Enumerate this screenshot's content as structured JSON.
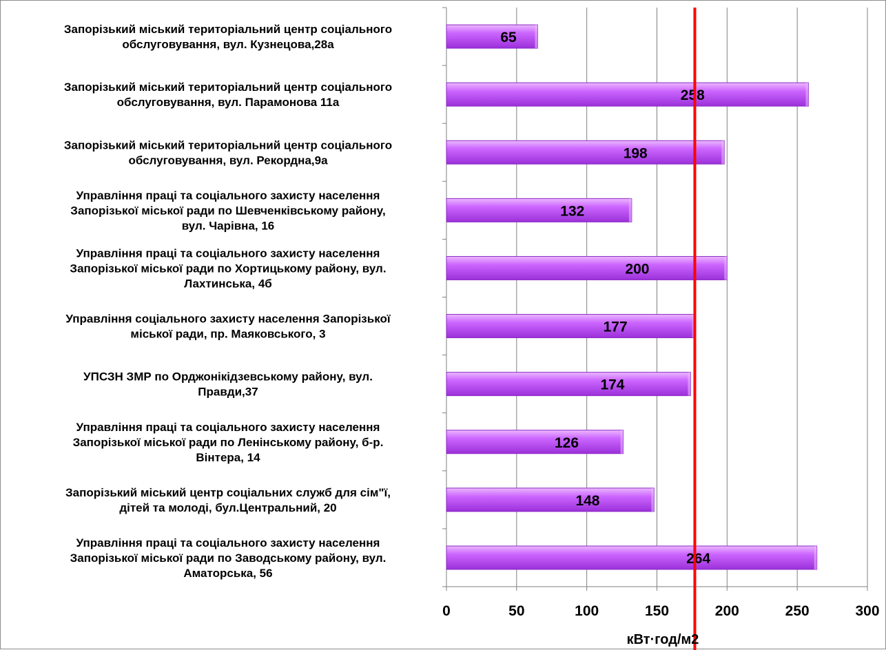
{
  "chart_data": {
    "type": "bar",
    "orientation": "horizontal",
    "categories": [
      "Запорізький міський територіальний центр соціального обслуговування, вул. Кузнецова,28а",
      "Запорізький міський територіальний центр соціального обслуговування, вул. Парамонова 11а",
      "Запорізький міський територіальний центр соціального обслуговування, вул. Рекордна,9а",
      "Управління праці та соціального захисту населення Запорізької міської ради по Шевченківському району, вул. Чарівна, 16",
      "Управління праці та соціального захисту населення Запорізької міської ради по Хортицькому району, вул. Лахтинська, 4б",
      "Управління соціального захисту населення Запорізької міської ради, пр. Маяковського, 3",
      "УПСЗН ЗМР по Орджонікідзевському району, вул. Правди,37",
      "Управління праці та соціального захисту населення Запорізької міської ради по Ленінському району, б-р. Вінтера, 14",
      "Запорізький міський центр соціальних служб для сім\"ї, дітей та молоді,  бул.Центральний, 20",
      "Управління праці та соціального захисту населення Запорізької міської ради по Заводському району, вул. Аматорська, 56"
    ],
    "category_lines": [
      [
        "Запорізький міський територіальний центр соціального",
        "обслуговування, вул. Кузнецова,28а"
      ],
      [
        "Запорізький міський територіальний центр соціального",
        "обслуговування, вул. Парамонова 11а"
      ],
      [
        "Запорізький міський територіальний центр соціального",
        "обслуговування, вул. Рекордна,9а"
      ],
      [
        "Управління праці та соціального захисту населення",
        "Запорізької міської ради по Шевченківському району,",
        "вул. Чарівна, 16"
      ],
      [
        "Управління праці та соціального захисту населення",
        "Запорізької міської ради по Хортицькому району, вул.",
        "Лахтинська, 4б"
      ],
      [
        "Управління соціального захисту населення Запорізької",
        "міської ради, пр. Маяковського, 3"
      ],
      [
        "УПСЗН ЗМР по Орджонікідзевському району, вул.",
        "Правди,37"
      ],
      [
        "Управління праці та соціального захисту населення",
        "Запорізької міської ради по Ленінському району, б-р.",
        "Вінтера, 14"
      ],
      [
        "Запорізький міський центр соціальних служб для сім\"ї,",
        "дітей та молоді,  бул.Центральний, 20"
      ],
      [
        "Управління праці та соціального захисту населення",
        "Запорізької міської ради по Заводському району, вул.",
        "Аматорська, 56"
      ]
    ],
    "values": [
      65,
      258,
      198,
      132,
      200,
      177,
      174,
      126,
      148,
      264
    ],
    "data_labels": [
      "65",
      "258",
      "198",
      "132",
      "200",
      "177",
      "174",
      "126",
      "148",
      "264"
    ],
    "xlabel": "кВт·год/м2",
    "ylabel": "",
    "xlim": [
      0,
      300
    ],
    "xticks": [
      0,
      50,
      100,
      150,
      200,
      250,
      300
    ],
    "xtick_labels": [
      "0",
      "50",
      "100",
      "150",
      "200",
      "250",
      "300"
    ],
    "reference_line": {
      "value": 177,
      "color": "#ff0000"
    },
    "grid": true,
    "legend": "none",
    "colors": {
      "bar_fill": "#cc66ff",
      "bar_fill_light": "#ebb8ff",
      "bar_fill_dark": "#9b30d9",
      "bar_stroke": "#8a2ac2",
      "gridline": "#808080",
      "reference_line": "#ff0000"
    }
  }
}
